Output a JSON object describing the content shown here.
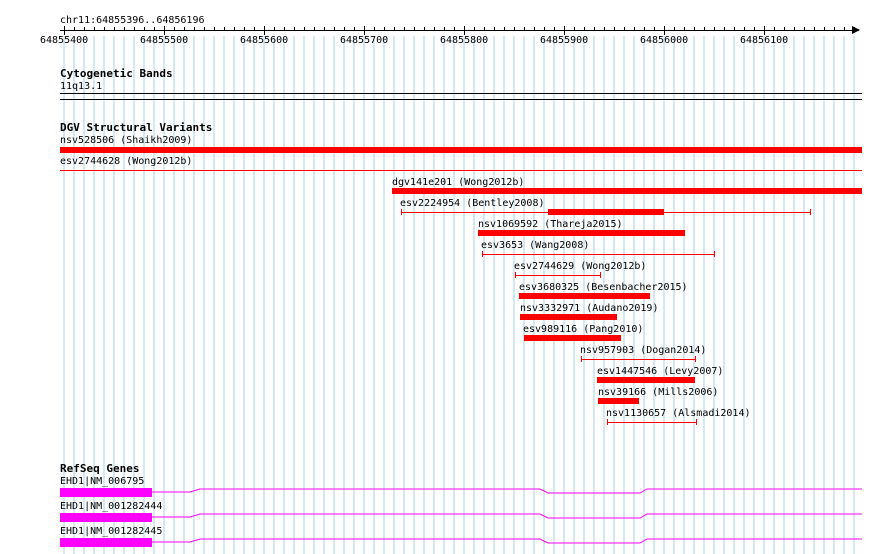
{
  "ruler": {
    "location": "chr11:64855396..64856196",
    "labels": [
      "64855400",
      "64855500",
      "64855600",
      "64855700",
      "64855800",
      "64855900",
      "64856000",
      "64856100"
    ]
  },
  "cytoband": {
    "title": "Cytogenetic Bands",
    "band_label": "11q13.1"
  },
  "dgv": {
    "title": "DGV Structural Variants",
    "features": [
      {
        "label": "nsv528506 (Shaikh2009)"
      },
      {
        "label": "esv2744628 (Wong2012b)"
      },
      {
        "label": "dgv141e201 (Wong2012b)"
      },
      {
        "label": "esv2224954 (Bentley2008)"
      },
      {
        "label": "nsv1069592 (Thareja2015)"
      },
      {
        "label": "esv3653 (Wang2008)"
      },
      {
        "label": "esv2744629 (Wong2012b)"
      },
      {
        "label": "esv3680325 (Besenbacher2015)"
      },
      {
        "label": "nsv3332971 (Audano2019)"
      },
      {
        "label": "esv989116 (Pang2010)"
      },
      {
        "label": "nsv957903 (Dogan2014)"
      },
      {
        "label": "esv1447546 (Levy2007)"
      },
      {
        "label": "nsv39166 (Mills2006)"
      },
      {
        "label": "nsv1130657 (Alsmadi2014)"
      }
    ]
  },
  "refseq": {
    "title": "RefSeq Genes",
    "transcripts": [
      {
        "label": "EHD1|NM_006795"
      },
      {
        "label": "EHD1|NM_001282444"
      },
      {
        "label": "EHD1|NM_001282445"
      }
    ]
  },
  "colors": {
    "grid": "#a8d0e6",
    "variant": "#ff0000",
    "gene": "#ff00ff"
  }
}
